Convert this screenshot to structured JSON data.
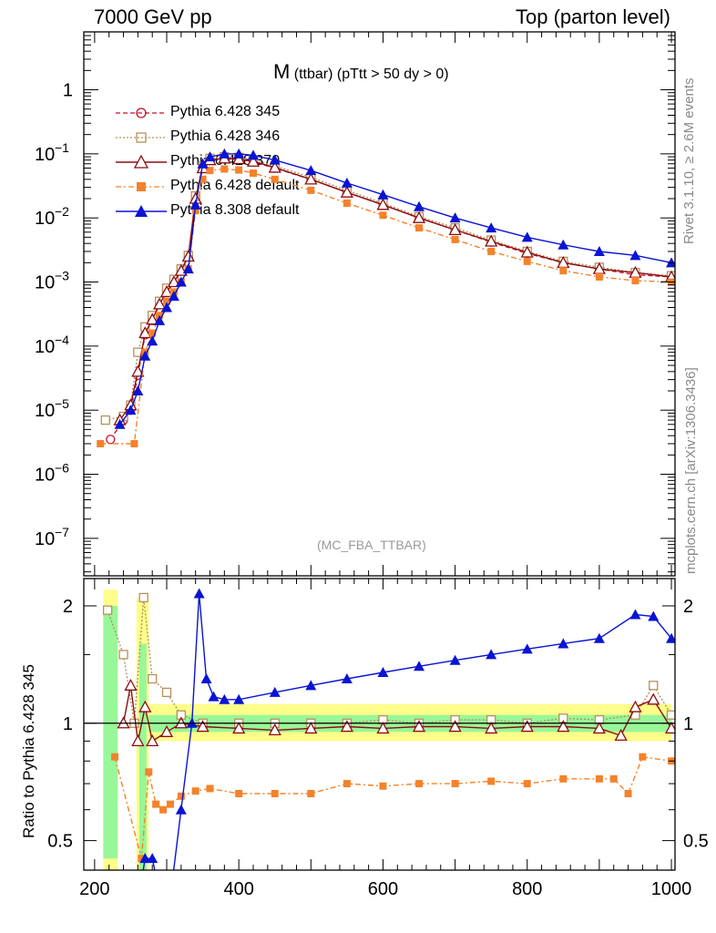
{
  "header": {
    "left": "7000 GeV pp",
    "right": "Top (parton level)"
  },
  "side_text": {
    "rivet": "Rivet 3.1.10, ≥ 2.6M events",
    "mcplots": "mcplots.cern.ch [arXiv:1306.3436]"
  },
  "chart_data": {
    "type": "scatter",
    "title_main": "M",
    "title_sub": "(ttbar) (pTtt > 50 dy > 0)",
    "analysis_label": "(MC_FBA_TTBAR)",
    "xlim": [
      185,
      1005
    ],
    "ylim": [
      2.6e-08,
      8
    ],
    "yscale": "log",
    "x_ticks": [
      "200",
      "400",
      "600",
      "800",
      "1000"
    ],
    "y_ticks": [
      "1",
      "10^{-1}",
      "10^{-2}",
      "10^{-3}",
      "10^{-4}",
      "10^{-5}",
      "10^{-6}",
      "10^{-7}"
    ],
    "legend_position": "top-left",
    "series": [
      {
        "name": "Pythia 6.428 345",
        "color": "#c8102e",
        "marker": "open-circle",
        "dash": "5,3",
        "x": [
          222,
          240,
          250,
          260,
          270,
          280,
          290,
          300,
          310,
          320,
          330,
          340,
          350,
          360,
          380,
          400,
          420,
          450,
          500,
          550,
          600,
          650,
          700,
          750,
          800,
          850,
          900,
          950,
          1000
        ],
        "y": [
          3.5e-06,
          7e-06,
          1e-05,
          3.5e-05,
          0.00015,
          0.00025,
          0.00045,
          0.0007,
          0.001,
          0.0015,
          0.0025,
          0.02,
          0.06,
          0.08,
          0.085,
          0.082,
          0.075,
          0.06,
          0.04,
          0.025,
          0.016,
          0.01,
          0.0065,
          0.0042,
          0.0028,
          0.002,
          0.0016,
          0.0013,
          0.0012
        ]
      },
      {
        "name": "Pythia 6.428 346",
        "color": "#b5915b",
        "marker": "open-square",
        "dash": "2,2",
        "x": [
          215,
          240,
          250,
          260,
          270,
          280,
          290,
          300,
          310,
          320,
          330,
          340,
          350,
          360,
          380,
          400,
          420,
          450,
          500,
          550,
          600,
          650,
          700,
          750,
          800,
          850,
          900,
          950,
          1000
        ],
        "y": [
          7e-06,
          8e-06,
          1.2e-05,
          8e-05,
          0.0002,
          0.0003,
          0.0005,
          0.0008,
          0.0011,
          0.0016,
          0.0026,
          0.022,
          0.065,
          0.085,
          0.09,
          0.088,
          0.08,
          0.065,
          0.043,
          0.027,
          0.017,
          0.0105,
          0.007,
          0.0045,
          0.003,
          0.0021,
          0.0017,
          0.0014,
          0.00125
        ]
      },
      {
        "name": "Pythia 6.428 370",
        "color": "#8b0d12",
        "marker": "open-triangle",
        "dash": "",
        "x": [
          235,
          250,
          260,
          270,
          280,
          290,
          300,
          310,
          320,
          330,
          340,
          350,
          360,
          380,
          400,
          420,
          450,
          500,
          550,
          600,
          650,
          700,
          750,
          800,
          850,
          900,
          950,
          1000
        ],
        "y": [
          7e-06,
          1.2e-05,
          4e-05,
          0.00016,
          0.00026,
          0.00045,
          0.0007,
          0.001,
          0.0015,
          0.0025,
          0.02,
          0.06,
          0.08,
          0.085,
          0.083,
          0.076,
          0.061,
          0.04,
          0.025,
          0.016,
          0.01,
          0.0065,
          0.0043,
          0.0029,
          0.002,
          0.0016,
          0.0014,
          0.0012
        ]
      },
      {
        "name": "Pythia 6.428 default",
        "color": "#f5822b",
        "marker": "filled-square",
        "dash": "6,3,2,3",
        "x": [
          208,
          255,
          270,
          280,
          290,
          300,
          310,
          320,
          330,
          340,
          350,
          360,
          380,
          400,
          420,
          450,
          500,
          550,
          600,
          650,
          700,
          750,
          800,
          850,
          900,
          950,
          1000
        ],
        "y": [
          3e-06,
          3e-06,
          8e-05,
          0.00016,
          0.0003,
          0.0005,
          0.0007,
          0.001,
          0.0016,
          0.013,
          0.04,
          0.055,
          0.058,
          0.056,
          0.05,
          0.04,
          0.027,
          0.017,
          0.011,
          0.007,
          0.0046,
          0.003,
          0.0021,
          0.0015,
          0.0012,
          0.00105,
          0.001
        ]
      },
      {
        "name": "Pythia 8.308 default",
        "color": "#0a14d2",
        "marker": "filled-triangle",
        "dash": "",
        "x": [
          235,
          250,
          260,
          270,
          280,
          290,
          300,
          310,
          320,
          330,
          340,
          350,
          360,
          380,
          400,
          420,
          450,
          500,
          550,
          600,
          650,
          700,
          750,
          800,
          850,
          900,
          950,
          1000
        ],
        "y": [
          6e-06,
          1e-05,
          2e-05,
          7e-05,
          0.00012,
          0.00025,
          0.0004,
          0.0006,
          0.001,
          0.0016,
          0.016,
          0.07,
          0.09,
          0.1,
          0.1,
          0.095,
          0.08,
          0.055,
          0.035,
          0.023,
          0.015,
          0.01,
          0.007,
          0.005,
          0.0038,
          0.003,
          0.0026,
          0.002
        ]
      }
    ],
    "ratio": {
      "ylabel": "Ratio to Pythia 6.428 345",
      "ylim": [
        0.42,
        2.35
      ],
      "yscale": "log",
      "y_ticks": [
        "2",
        "1",
        "0.5"
      ],
      "reference_line": 1,
      "band_color_inner": "#98f798",
      "band_color_outer": "#fdfd8a",
      "series": [
        {
          "name": "Pythia 6.428 346",
          "x": [
            218,
            240,
            255,
            268,
            280,
            300,
            320,
            350,
            400,
            450,
            500,
            550,
            600,
            650,
            700,
            750,
            800,
            850,
            900,
            950,
            975,
            1000
          ],
          "y": [
            1.95,
            1.5,
            1.0,
            2.1,
            1.3,
            1.2,
            1.05,
            1.0,
            1.0,
            1.0,
            1.0,
            1.0,
            1.02,
            1.0,
            1.02,
            1.02,
            1.0,
            1.03,
            1.02,
            1.05,
            1.25,
            1.05
          ]
        },
        {
          "name": "Pythia 6.428 370",
          "x": [
            240,
            250,
            260,
            270,
            280,
            300,
            320,
            350,
            400,
            450,
            500,
            550,
            600,
            650,
            700,
            750,
            800,
            850,
            900,
            930,
            950,
            975,
            1000
          ],
          "y": [
            1.0,
            1.25,
            0.9,
            1.1,
            0.9,
            0.95,
            1.0,
            0.98,
            0.97,
            0.96,
            0.97,
            0.98,
            0.97,
            0.98,
            0.98,
            0.97,
            0.98,
            0.98,
            0.97,
            0.93,
            1.1,
            1.15,
            0.97
          ]
        },
        {
          "name": "Pythia 6.428 default",
          "x": [
            228,
            265,
            275,
            285,
            295,
            305,
            320,
            340,
            360,
            400,
            450,
            500,
            550,
            600,
            650,
            700,
            750,
            800,
            850,
            900,
            920,
            940,
            960,
            1000
          ],
          "y": [
            0.82,
            0.45,
            0.75,
            0.62,
            0.6,
            0.62,
            0.65,
            0.67,
            0.68,
            0.66,
            0.66,
            0.66,
            0.7,
            0.69,
            0.7,
            0.7,
            0.71,
            0.7,
            0.72,
            0.72,
            0.72,
            0.66,
            0.82,
            0.8
          ]
        },
        {
          "name": "Pythia 8.308 default",
          "x": [
            255,
            270,
            280,
            300,
            320,
            335,
            345,
            355,
            365,
            380,
            400,
            450,
            500,
            550,
            600,
            650,
            700,
            750,
            800,
            850,
            900,
            950,
            975,
            1000
          ],
          "y": [
            0.3,
            0.45,
            0.45,
            0.3,
            0.6,
            1.0,
            2.15,
            1.3,
            1.17,
            1.15,
            1.15,
            1.2,
            1.25,
            1.3,
            1.35,
            1.4,
            1.45,
            1.5,
            1.55,
            1.6,
            1.65,
            1.9,
            1.88,
            1.65
          ]
        }
      ]
    }
  }
}
